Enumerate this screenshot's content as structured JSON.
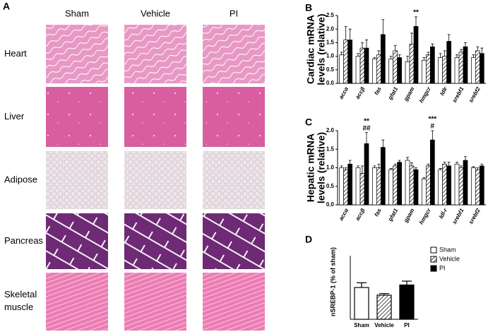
{
  "panel_a": {
    "label": "A",
    "columns": [
      "Sham",
      "Vehicle",
      "PI"
    ],
    "rows": [
      "Heart",
      "Liver",
      "Adipose",
      "Pancreas",
      "Skeletal muscle"
    ]
  },
  "chart_data": [
    {
      "type": "bar",
      "label": "B",
      "ylabel_lines": [
        "Cardiac mRNA",
        "levels (relative)"
      ],
      "categories": [
        "accα",
        "accβ",
        "fas",
        "gfat1",
        "gpam",
        "hmgcr",
        "ldlr",
        "srebf1",
        "srebf2"
      ],
      "series": [
        {
          "name": "Sham",
          "color": "#ffffff",
          "values": [
            1.05,
            1.0,
            0.9,
            0.9,
            0.8,
            0.85,
            0.95,
            0.95,
            0.95
          ],
          "errors": [
            0.1,
            0.1,
            0.05,
            0.1,
            0.2,
            0.1,
            0.15,
            0.1,
            0.1
          ]
        },
        {
          "name": "Vehicle",
          "color": "hatch",
          "values": [
            1.6,
            1.3,
            1.05,
            1.2,
            1.45,
            1.05,
            1.0,
            1.15,
            1.2
          ],
          "errors": [
            0.5,
            0.2,
            0.15,
            0.2,
            0.4,
            0.1,
            0.2,
            0.1,
            0.15
          ]
        },
        {
          "name": "PI",
          "color": "#000000",
          "values": [
            1.6,
            1.3,
            1.8,
            0.95,
            2.1,
            1.35,
            1.55,
            1.35,
            1.1
          ],
          "errors": [
            0.4,
            0.3,
            0.55,
            0.1,
            0.35,
            0.1,
            0.25,
            0.15,
            0.2
          ]
        }
      ],
      "ylim": [
        0,
        2.5
      ],
      "yticks": [
        {
          "value": 0,
          "label": "0.0"
        },
        0.5,
        {
          "value": 1,
          "label": "1.0"
        },
        1.5,
        {
          "value": 2,
          "label": "2.0"
        },
        2.5
      ],
      "annotations": [
        {
          "at": "gpam",
          "lines": [
            "**"
          ]
        }
      ]
    },
    {
      "type": "bar",
      "label": "C",
      "ylabel_lines": [
        "Hepatic mRNA",
        "levels (relative)"
      ],
      "categories": [
        "accα",
        "accβ",
        "fas",
        "gfat1",
        "gpam",
        "hmgcr",
        "ldl-r",
        "srebf1",
        "srebf2"
      ],
      "series": [
        {
          "name": "Sham",
          "color": "#ffffff",
          "values": [
            1.0,
            1.0,
            1.0,
            0.95,
            1.2,
            0.7,
            0.95,
            1.1,
            1.0
          ],
          "errors": [
            0.05,
            0.05,
            0.05,
            0.03,
            0.08,
            0.03,
            0.03,
            0.05,
            0.03
          ]
        },
        {
          "name": "Vehicle",
          "color": "hatch",
          "values": [
            0.95,
            0.85,
            1.0,
            1.05,
            1.05,
            1.05,
            1.1,
            1.0,
            0.95
          ],
          "errors": [
            0.05,
            0.2,
            0.1,
            0.05,
            0.08,
            0.05,
            0.05,
            0.05,
            0.05
          ]
        },
        {
          "name": "PI",
          "color": "#000000",
          "values": [
            1.1,
            1.65,
            1.55,
            1.15,
            0.95,
            1.75,
            1.05,
            1.2,
            1.05
          ],
          "errors": [
            0.1,
            0.3,
            0.2,
            0.05,
            0.05,
            0.25,
            0.1,
            0.1,
            0.05
          ]
        }
      ],
      "ylim": [
        0,
        2
      ],
      "yticks": [
        {
          "value": 0,
          "label": "0.0"
        },
        0.5,
        {
          "value": 1,
          "label": "1.0"
        },
        1.5,
        {
          "value": 2,
          "label": "2.0"
        }
      ],
      "annotations": [
        {
          "at": "accβ",
          "lines": [
            "**",
            "##"
          ]
        },
        {
          "at": "hmgcr",
          "lines": [
            "***",
            "#"
          ]
        }
      ]
    },
    {
      "type": "single-bar",
      "label": "D",
      "ylabel": "nSREBP-1 (% of sham)",
      "categories": [
        "Sham",
        "Vehicle",
        "PI"
      ],
      "values": [
        100,
        76,
        108
      ],
      "errors": [
        15,
        5,
        12
      ],
      "colors": [
        "#ffffff",
        "hatch",
        "#000000"
      ],
      "legend": [
        "Sham",
        "Vehicle",
        "PI"
      ],
      "ylim": [
        0,
        200
      ]
    }
  ]
}
